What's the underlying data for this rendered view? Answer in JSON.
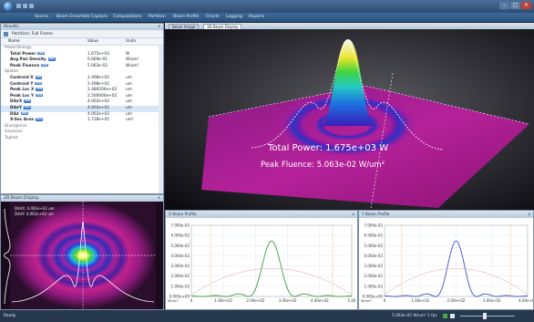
{
  "menubar": {
    "items": [
      "Source",
      "Beam Ensemble",
      "Capture",
      "Computations",
      "Partition",
      "Beam Profile",
      "Charts",
      "Logging",
      "Reports"
    ]
  },
  "properties": {
    "title": "Results",
    "close_label": "x",
    "toolbar_label": "Partition: Full Frame",
    "columns": [
      "Name",
      "Value",
      "Units"
    ],
    "rows": [
      {
        "name": "Power/Energy",
        "value": "",
        "unit": "",
        "kind": "group"
      },
      {
        "name": "Total Power",
        "value": "1.675e+03",
        "unit": "W",
        "kind": "item"
      },
      {
        "name": "Avg Pwr Density",
        "value": "6.669e-01",
        "unit": "W/um²",
        "kind": "item"
      },
      {
        "name": "Peak Fluence",
        "value": "5.063e-02",
        "unit": "W/um²",
        "kind": "item"
      },
      {
        "name": "Spatial",
        "value": "",
        "unit": "",
        "kind": "group"
      },
      {
        "name": "Centroid X",
        "value": "2.498e+02",
        "unit": "um",
        "kind": "item"
      },
      {
        "name": "Centroid Y",
        "value": "2.498e+02",
        "unit": "um",
        "kind": "item"
      },
      {
        "name": "Peak Loc X",
        "value": "2.486200e+02",
        "unit": "um",
        "kind": "item"
      },
      {
        "name": "Peak Loc Y",
        "value": "2.500000e+02",
        "unit": "um",
        "kind": "item"
      },
      {
        "name": "D4σX",
        "value": "4.002e+02",
        "unit": "um",
        "kind": "item"
      },
      {
        "name": "D4σY",
        "value": "4.002e+02",
        "unit": "um",
        "kind": "item",
        "selected": true
      },
      {
        "name": "D4σ",
        "value": "4.002e+02",
        "unit": "um",
        "kind": "item"
      },
      {
        "name": "X-Sec Area",
        "value": "1.728e+05",
        "unit": "um²",
        "kind": "item"
      },
      {
        "name": "Divergence",
        "value": "",
        "unit": "",
        "kind": "group"
      },
      {
        "name": "Gaussian",
        "value": "",
        "unit": "",
        "kind": "group"
      },
      {
        "name": "Tophat",
        "value": "",
        "unit": "",
        "kind": "group"
      }
    ],
    "tag_label": "ISO"
  },
  "view3d": {
    "tabs": [
      "Beam Image",
      "3D Beam Display"
    ],
    "total_power_text": "Total Power: 1.675e+03 W",
    "peak_fluence_text": "Peak Fluence: 5.063e-02 W/um²"
  },
  "view2d": {
    "title": "2D Beam Display",
    "line1": "D4σX: 4.002e+02 um",
    "line2": "D4σY: 4.002e+02 um"
  },
  "charts": [
    {
      "title": "X Beam Profile",
      "ylabels": [
        "7.000e-02",
        "6.000e-02",
        "5.000e-02",
        "4.000e-02",
        "3.000e-02",
        "2.000e-02",
        "1.000e-02",
        "0.000e+00"
      ],
      "xlabels": [
        "0",
        "1.00e+02",
        "2.00e+02",
        "3.00e+02",
        "4.00e+02",
        "5.00"
      ],
      "unit_label": "W/um²",
      "color": "#3aa13a"
    },
    {
      "title": "Y Beam Profile",
      "ylabels": [
        "7.000e-02",
        "6.000e-02",
        "5.000e-02",
        "4.000e-02",
        "3.000e-02",
        "2.000e-02",
        "1.000e-02",
        "0.000e+00"
      ],
      "xlabels": [
        "0",
        "1.00e+02",
        "2.00e+02",
        "3.00e+02",
        "4.00e+02"
      ],
      "unit_label": "W/um²",
      "color": "#3d52c8"
    }
  ],
  "status": {
    "left": "Ready",
    "right": "5.063e-02 W/um²   1 fps"
  },
  "colors": {
    "accent": "#2d4c72",
    "plane": "#b0208a",
    "annotation": "#ffffff"
  }
}
